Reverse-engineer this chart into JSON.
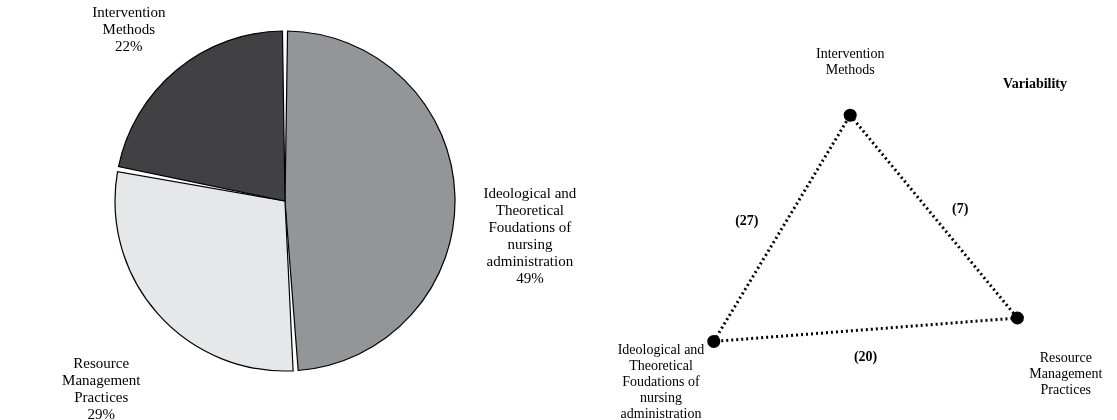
{
  "chart_data": [
    {
      "type": "pie",
      "categories": [
        "Ideological and Theoretical Foudations of nursing administration",
        "Resource Management Practices",
        "Intervention Methods"
      ],
      "values": [
        49,
        29,
        22
      ],
      "value_labels": [
        "49%",
        "29%",
        "22%"
      ],
      "colors": [
        "#939598",
        "#e6e7e8",
        "#414042"
      ],
      "legend": false
    },
    {
      "type": "other",
      "title": "Variability",
      "categories": [
        "Intervention Methods",
        "Resource Management Practices",
        "Ideological and Theoretical Foudations of nursing administration"
      ],
      "annotations": [
        "(7)",
        "(20)",
        "(27)"
      ]
    }
  ]
}
